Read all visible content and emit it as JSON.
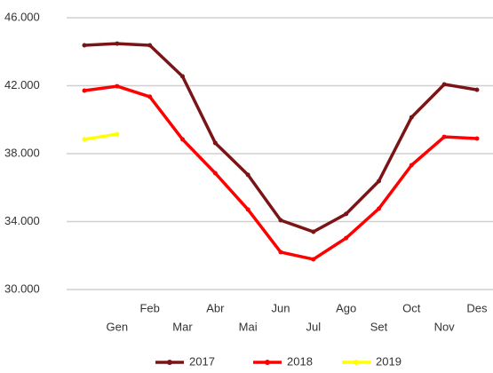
{
  "chart_data": {
    "type": "line",
    "categories": [
      null,
      "Gen",
      "Feb",
      "Mar",
      "Abr",
      "Mai",
      "Jun",
      "Jul",
      "Ago",
      "Set",
      "Oct",
      "Nov",
      "Des"
    ],
    "series": [
      {
        "name": "2017",
        "color": "#7b1416",
        "values": [
          44380,
          44480,
          44380,
          42550,
          38630,
          36750,
          34080,
          33400,
          34450,
          36380,
          40140,
          42080,
          41760
        ]
      },
      {
        "name": "2018",
        "color": "#ff0000",
        "values": [
          41710,
          41970,
          41350,
          38840,
          36850,
          34710,
          32200,
          31780,
          33030,
          34760,
          37320,
          38990,
          38890
        ]
      },
      {
        "name": "2019",
        "color": "#ffff00",
        "values": [
          38840,
          39150,
          null,
          null,
          null,
          null,
          null,
          null,
          null,
          null,
          null,
          null,
          null
        ]
      }
    ],
    "ylim": [
      30000,
      46000
    ],
    "yticks": [
      {
        "value": 30000,
        "label": "30.000"
      },
      {
        "value": 34000,
        "label": "34.000"
      },
      {
        "value": 38000,
        "label": "38.000"
      },
      {
        "value": 42000,
        "label": "42.000"
      },
      {
        "value": 46000,
        "label": "46.000"
      }
    ],
    "grid": true,
    "legend": "bottom"
  }
}
